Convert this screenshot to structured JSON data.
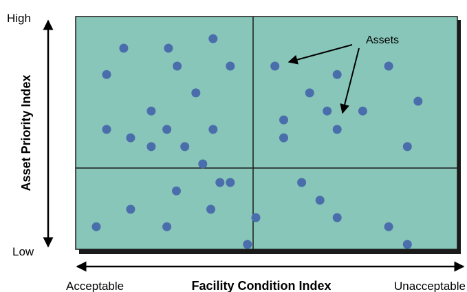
{
  "labels": {
    "y_high": "High",
    "y_low": "Low",
    "y_title": "Asset Priority Index",
    "x_left": "Acceptable",
    "x_title": "Facility Condition Index",
    "x_right": "Unacceptable",
    "callout": "Assets"
  },
  "colors": {
    "field": "#88c6b9",
    "point": "#4a6eab",
    "line": "#1a1a1a",
    "shadow": "#1a1a1a"
  },
  "chart_data": {
    "type": "scatter",
    "xlabel": "Facility Condition Index",
    "ylabel": "Asset Priority Index",
    "x_scale": [
      "Acceptable",
      "Unacceptable"
    ],
    "y_scale": [
      "Low",
      "High"
    ],
    "quadrant_split": {
      "x": 0.466,
      "y": 0.65
    },
    "points": [
      {
        "x": 0.126,
        "y": 0.864
      },
      {
        "x": 0.243,
        "y": 0.864
      },
      {
        "x": 0.36,
        "y": 0.905
      },
      {
        "x": 0.266,
        "y": 0.787
      },
      {
        "x": 0.405,
        "y": 0.787
      },
      {
        "x": 0.081,
        "y": 0.751
      },
      {
        "x": 0.315,
        "y": 0.672
      },
      {
        "x": 0.198,
        "y": 0.594
      },
      {
        "x": 0.081,
        "y": 0.515
      },
      {
        "x": 0.144,
        "y": 0.479
      },
      {
        "x": 0.239,
        "y": 0.515
      },
      {
        "x": 0.36,
        "y": 0.515
      },
      {
        "x": 0.198,
        "y": 0.441
      },
      {
        "x": 0.286,
        "y": 0.441
      },
      {
        "x": 0.333,
        "y": 0.367
      },
      {
        "x": 0.378,
        "y": 0.287
      },
      {
        "x": 0.405,
        "y": 0.287
      },
      {
        "x": 0.264,
        "y": 0.251
      },
      {
        "x": 0.144,
        "y": 0.172
      },
      {
        "x": 0.354,
        "y": 0.172
      },
      {
        "x": 0.054,
        "y": 0.097
      },
      {
        "x": 0.239,
        "y": 0.097
      },
      {
        "x": 0.45,
        "y": 0.021
      },
      {
        "x": 0.472,
        "y": 0.136
      },
      {
        "x": 0.522,
        "y": 0.787
      },
      {
        "x": 0.685,
        "y": 0.751
      },
      {
        "x": 0.82,
        "y": 0.787
      },
      {
        "x": 0.613,
        "y": 0.672
      },
      {
        "x": 0.659,
        "y": 0.594
      },
      {
        "x": 0.752,
        "y": 0.594
      },
      {
        "x": 0.897,
        "y": 0.636
      },
      {
        "x": 0.545,
        "y": 0.556
      },
      {
        "x": 0.685,
        "y": 0.515
      },
      {
        "x": 0.545,
        "y": 0.479
      },
      {
        "x": 0.869,
        "y": 0.441
      },
      {
        "x": 0.592,
        "y": 0.287
      },
      {
        "x": 0.64,
        "y": 0.211
      },
      {
        "x": 0.685,
        "y": 0.136
      },
      {
        "x": 0.82,
        "y": 0.097
      },
      {
        "x": 0.869,
        "y": 0.021
      }
    ]
  }
}
